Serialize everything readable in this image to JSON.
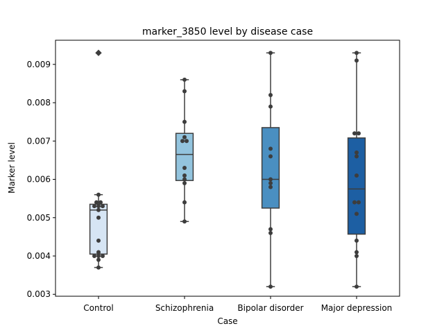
{
  "chart_data": {
    "type": "box",
    "title": "marker_3850 level by disease case",
    "xlabel": "Case",
    "ylabel": "Marker level",
    "ylim": [
      0.00295,
      0.00963
    ],
    "yticks": [
      0.003,
      0.004,
      0.005,
      0.006,
      0.007,
      0.008,
      0.009
    ],
    "ytick_labels": [
      "0.003",
      "0.004",
      "0.005",
      "0.006",
      "0.007",
      "0.008",
      "0.009"
    ],
    "categories": [
      "Control",
      "Schizophrenia",
      "Bipolar disorder",
      "Major depression"
    ],
    "grid": false,
    "boxes": [
      {
        "category": "Control",
        "color": "#d6e5f4",
        "q1": 0.00405,
        "median": 0.0052,
        "q3": 0.00535,
        "whisker_low": 0.0037,
        "whisker_high": 0.0056,
        "outliers": [
          0.0093
        ],
        "points": [
          0.0093,
          0.0056,
          0.0054,
          0.0054,
          0.0053,
          0.0053,
          0.0053,
          0.0052,
          0.005,
          0.0044,
          0.0041,
          0.004,
          0.004,
          0.004,
          0.0039,
          0.0037
        ]
      },
      {
        "category": "Schizophrenia",
        "color": "#93c4de",
        "q1": 0.00597,
        "median": 0.00665,
        "q3": 0.0072,
        "whisker_low": 0.0049,
        "whisker_high": 0.0086,
        "outliers": [],
        "points": [
          0.0086,
          0.0083,
          0.0075,
          0.0071,
          0.007,
          0.007,
          0.0063,
          0.0061,
          0.006,
          0.0059,
          0.0054,
          0.0049
        ]
      },
      {
        "category": "Bipolar disorder",
        "color": "#4a8fc1",
        "q1": 0.00525,
        "median": 0.006,
        "q3": 0.00735,
        "whisker_low": 0.0032,
        "whisker_high": 0.0093,
        "outliers": [],
        "points": [
          0.0093,
          0.0082,
          0.0079,
          0.0068,
          0.0066,
          0.006,
          0.0059,
          0.0058,
          0.0047,
          0.0046,
          0.0032
        ]
      },
      {
        "category": "Major depression",
        "color": "#1d5fa3",
        "q1": 0.00457,
        "median": 0.00575,
        "q3": 0.00708,
        "whisker_low": 0.0032,
        "whisker_high": 0.0093,
        "outliers": [],
        "points": [
          0.0093,
          0.0091,
          0.0072,
          0.0072,
          0.0067,
          0.0066,
          0.0061,
          0.0054,
          0.0054,
          0.0051,
          0.0044,
          0.0041,
          0.004,
          0.0032
        ]
      }
    ],
    "colors": {
      "box_edge": "#3d3d3d",
      "point": "#3d3d3d",
      "axis": "#000000"
    }
  }
}
